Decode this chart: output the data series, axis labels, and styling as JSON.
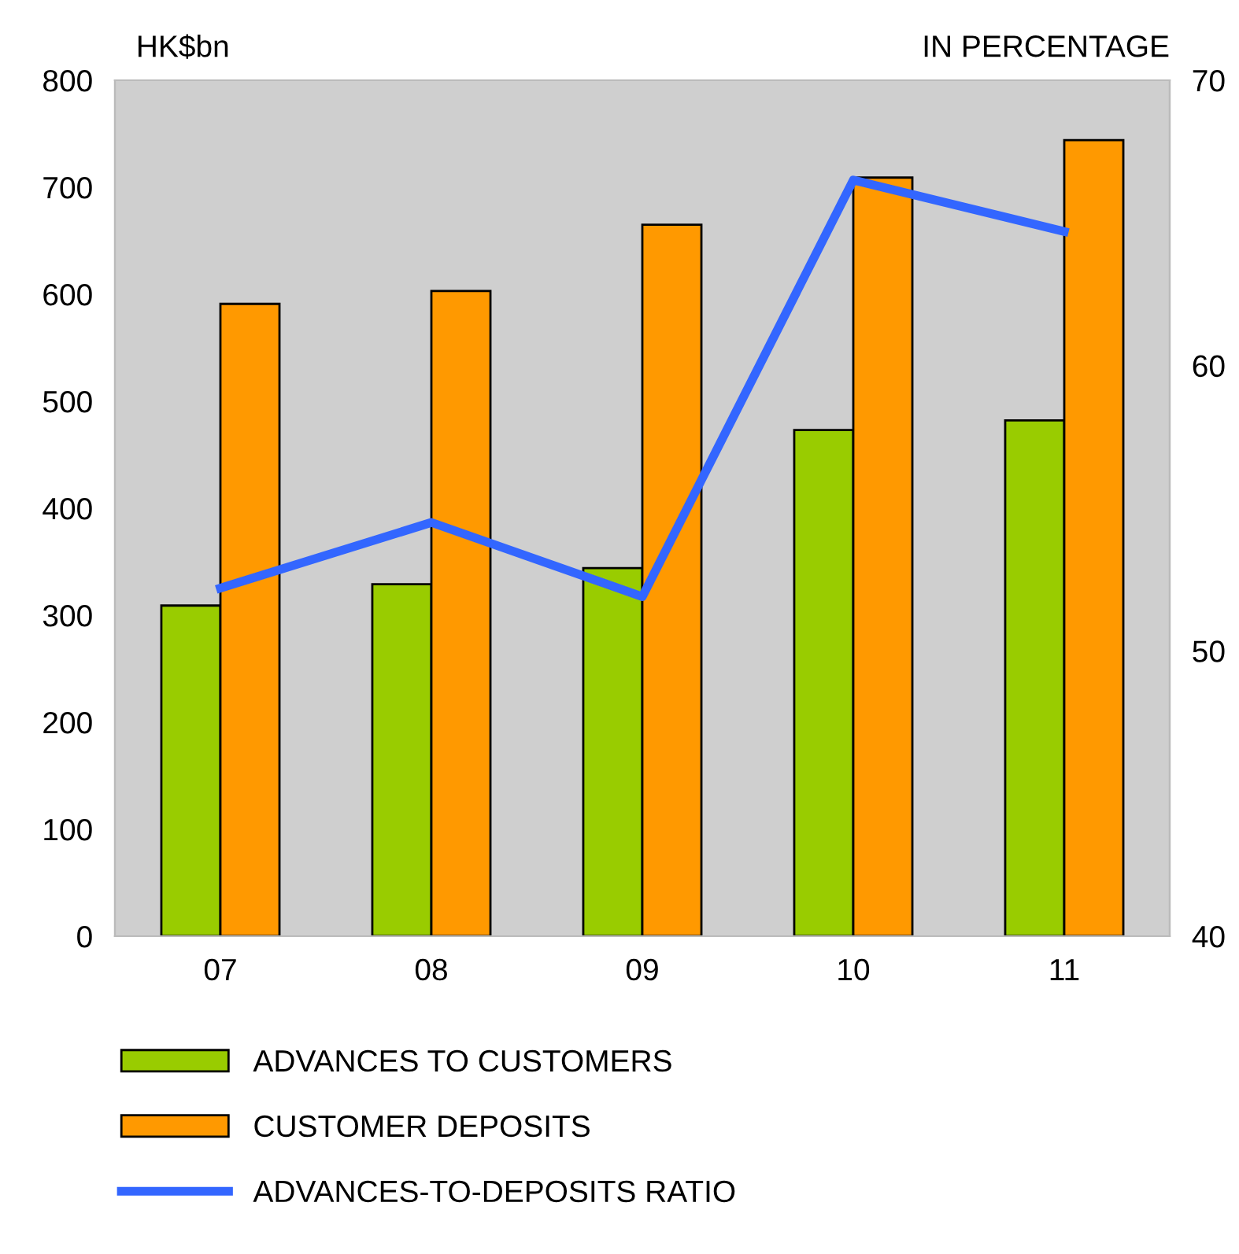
{
  "chart_data": {
    "type": "bar",
    "ylabel": "HK$bn",
    "y2label": "IN PERCENTAGE",
    "categories": [
      "07",
      "08",
      "09",
      "10",
      "11"
    ],
    "series": [
      {
        "name": "ADVANCES TO CUSTOMERS",
        "color": "#99cc00",
        "values": [
          309,
          329,
          344,
          473,
          482
        ]
      },
      {
        "name": "CUSTOMER DEPOSITS",
        "color": "#ff9900",
        "values": [
          591,
          603,
          665,
          709,
          744
        ]
      },
      {
        "name": "ADVANCES-TO-DEPOSITS RATIO",
        "type": "line",
        "axis": "y2",
        "color": "#3366ff",
        "values": [
          52.2,
          54.5,
          51.9,
          66.5,
          64.7
        ]
      }
    ],
    "ylim": [
      0,
      800
    ],
    "yticks": [
      0,
      100,
      200,
      300,
      400,
      500,
      600,
      700,
      800
    ],
    "y2lim": [
      40,
      70
    ],
    "y2ticks": [
      40,
      50,
      60,
      70
    ],
    "grid": false,
    "legend": "bottom",
    "marker": "none",
    "line_style": "solid"
  }
}
